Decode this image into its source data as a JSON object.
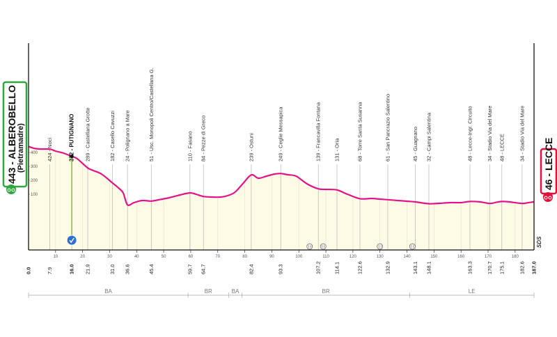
{
  "chart_data": {
    "type": "area",
    "xlim": [
      0,
      187
    ],
    "ylim": [
      0,
      700
    ],
    "profile": [
      [
        0,
        443
      ],
      [
        2,
        430
      ],
      [
        4,
        425
      ],
      [
        7.9,
        424
      ],
      [
        10,
        410
      ],
      [
        13,
        395
      ],
      [
        16,
        372
      ],
      [
        18,
        355
      ],
      [
        21.9,
        289
      ],
      [
        24,
        270
      ],
      [
        27,
        245
      ],
      [
        31,
        182
      ],
      [
        33,
        150
      ],
      [
        35,
        110
      ],
      [
        36.6,
        24
      ],
      [
        39,
        40
      ],
      [
        42,
        55
      ],
      [
        45.4,
        51
      ],
      [
        48,
        60
      ],
      [
        52,
        75
      ],
      [
        56,
        95
      ],
      [
        59.7,
        110
      ],
      [
        62,
        100
      ],
      [
        64.7,
        84
      ],
      [
        68,
        80
      ],
      [
        72,
        82
      ],
      [
        76,
        110
      ],
      [
        79,
        170
      ],
      [
        82.4,
        239
      ],
      [
        85,
        215
      ],
      [
        88,
        230
      ],
      [
        91,
        245
      ],
      [
        93.3,
        249
      ],
      [
        96,
        240
      ],
      [
        99,
        230
      ],
      [
        103,
        175
      ],
      [
        107.2,
        139
      ],
      [
        110,
        135
      ],
      [
        114.1,
        131
      ],
      [
        118,
        100
      ],
      [
        122.6,
        68
      ],
      [
        127,
        70
      ],
      [
        130,
        65
      ],
      [
        132.9,
        61
      ],
      [
        136,
        56
      ],
      [
        140,
        50
      ],
      [
        143.1,
        45
      ],
      [
        148.1,
        32
      ],
      [
        152,
        35
      ],
      [
        156,
        40
      ],
      [
        160,
        40
      ],
      [
        163.3,
        48
      ],
      [
        167,
        45
      ],
      [
        170.7,
        34
      ],
      [
        173,
        42
      ],
      [
        175.1,
        48
      ],
      [
        178,
        45
      ],
      [
        182.6,
        34
      ],
      [
        185,
        40
      ],
      [
        187,
        46
      ]
    ],
    "start": {
      "label": "443 - ALBEROBELLO",
      "sub": "(Pietramadre)"
    },
    "finish": {
      "label": "46 - LECCE"
    },
    "waypoints": [
      {
        "km": 7.9,
        "label": "424 - Noci"
      },
      {
        "km": 16.0,
        "label": "372 - PUTIGNANO",
        "bold": true
      },
      {
        "km": 21.9,
        "label": "289 - Castellana Grotte"
      },
      {
        "km": 31.0,
        "label": "182 - Casello Cavuzzi"
      },
      {
        "km": 36.6,
        "label": "24 - Polignano a Mare"
      },
      {
        "km": 45.4,
        "label": "51 - Usc. Monopoli Centro/Castellana G."
      },
      {
        "km": 59.7,
        "label": "110 - Fasano"
      },
      {
        "km": 64.7,
        "label": "84 - Pezze di Greco"
      },
      {
        "km": 82.4,
        "label": "239 - Ostuni"
      },
      {
        "km": 93.3,
        "label": "249 - Ceglie Messapica"
      },
      {
        "km": 107.2,
        "label": "139 - Francavilla Fontana"
      },
      {
        "km": 114.1,
        "label": "131 - Oria"
      },
      {
        "km": 122.6,
        "label": "68 - Torre Santa Susanna"
      },
      {
        "km": 132.9,
        "label": "61 - San Pancrazio Salentino"
      },
      {
        "km": 143.1,
        "label": "45 - Guagnano"
      },
      {
        "km": 148.1,
        "label": "32 - Campi Salentina"
      },
      {
        "km": 163.3,
        "label": "48 - Lecce-Ingr. Circuito"
      },
      {
        "km": 170.7,
        "label": "34 - Stadio Via del Mare"
      },
      {
        "km": 175.1,
        "label": "48 - LECCE"
      },
      {
        "km": 182.6,
        "label": "34 - Stadio Via del Mare"
      }
    ],
    "km_labels": [
      {
        "km": 0,
        "label": "0.0",
        "bold": true
      },
      {
        "km": 7.9,
        "label": "7.9"
      },
      {
        "km": 16.0,
        "label": "16.0",
        "bold": true
      },
      {
        "km": 21.9,
        "label": "21.9"
      },
      {
        "km": 31.0,
        "label": "31.0"
      },
      {
        "km": 36.6,
        "label": "36.6"
      },
      {
        "km": 45.4,
        "label": "45.4"
      },
      {
        "km": 59.7,
        "label": "59.7"
      },
      {
        "km": 64.7,
        "label": "64.7"
      },
      {
        "km": 82.4,
        "label": "82.4"
      },
      {
        "km": 93.3,
        "label": "93.3"
      },
      {
        "km": 107.2,
        "label": "107.2"
      },
      {
        "km": 114.1,
        "label": "114.1"
      },
      {
        "km": 122.6,
        "label": "122.6"
      },
      {
        "km": 132.9,
        "label": "132.9"
      },
      {
        "km": 143.1,
        "label": "143.1"
      },
      {
        "km": 148.1,
        "label": "148.1"
      },
      {
        "km": 163.3,
        "label": "163.3"
      },
      {
        "km": 170.7,
        "label": "170.7"
      },
      {
        "km": 175.1,
        "label": "175.1"
      },
      {
        "km": 182.6,
        "label": "182.6"
      },
      {
        "km": 187.0,
        "label": "187.0",
        "bold": true
      }
    ],
    "x_ticks": [
      10,
      20,
      30,
      40,
      50,
      60,
      70,
      80,
      90,
      100,
      110,
      120,
      130,
      140,
      150,
      160,
      170,
      180
    ],
    "y_ticks": [
      0,
      100,
      200,
      300,
      400
    ],
    "intermediate_sprint_km": 16.0,
    "markers_km": [
      104,
      109,
      130,
      142
    ],
    "provinces": [
      {
        "label": "BA",
        "from": 0,
        "to": 59
      },
      {
        "label": "BR",
        "from": 59,
        "to": 74
      },
      {
        "label": "BA",
        "from": 74,
        "to": 79
      },
      {
        "label": "BR",
        "from": 79,
        "to": 141
      },
      {
        "label": "LE",
        "from": 141,
        "to": 187
      }
    ],
    "brand": "SDS",
    "colors": {
      "profile": "#e4128a",
      "fill": "#fdfbe6",
      "start": "#2fa73e",
      "finish": "#e3103c",
      "sprint": "#2e6fcf"
    }
  }
}
